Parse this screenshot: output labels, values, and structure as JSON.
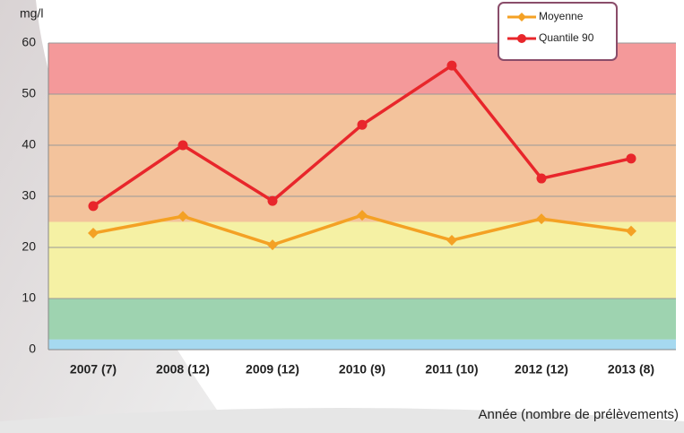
{
  "chart_data": {
    "type": "line",
    "y_label": "mg/l",
    "x_label": "Année (nombre de prélèvements)",
    "categories": [
      "2007 (7)",
      "2008 (12)",
      "2009 (12)",
      "2010 (9)",
      "2011 (10)",
      "2012 (12)",
      "2013 (8)"
    ],
    "series": [
      {
        "name": "Moyenne",
        "color": "#f4a124",
        "marker": "diamond",
        "values": [
          22.8,
          26.1,
          20.5,
          26.3,
          21.4,
          25.6,
          23.2
        ]
      },
      {
        "name": "Quantile 90",
        "color": "#e8262b",
        "marker": "circle",
        "values": [
          28.1,
          40,
          29.1,
          44,
          55.6,
          33.5,
          37.4
        ]
      }
    ],
    "ylim": [
      0,
      60
    ],
    "yticks": [
      0,
      10,
      20,
      30,
      40,
      50,
      60
    ],
    "grid": true,
    "bands": [
      {
        "from": 0,
        "to": 2,
        "color": "#a6d9f0"
      },
      {
        "from": 2,
        "to": 10,
        "color": "#9ed3b0"
      },
      {
        "from": 10,
        "to": 25,
        "color": "#f5f1a4"
      },
      {
        "from": 25,
        "to": 50,
        "color": "#f3c39c"
      },
      {
        "from": 50,
        "to": 60,
        "color": "#f4999a"
      }
    ],
    "legend": "top-right"
  }
}
